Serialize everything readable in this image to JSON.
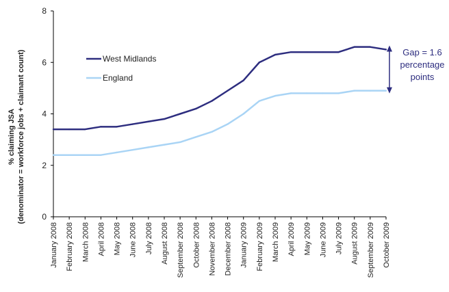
{
  "chart_data": {
    "type": "line",
    "ylabel_line1": "% claiming JSA",
    "ylabel_line2": "(denominator = workforce jobs + claimant count)",
    "ylim": [
      0,
      8
    ],
    "yticks": [
      "0",
      "2",
      "4",
      "6",
      "8"
    ],
    "grid": false,
    "categories": [
      "January 2008",
      "February 2008",
      "March 2008",
      "April 2008",
      "May 2008",
      "June 2008",
      "July 2008",
      "August 2008",
      "September 2008",
      "October 2008",
      "November 2008",
      "December 2008",
      "January 2009",
      "February 2009",
      "March 2009",
      "April 2009",
      "May 2009",
      "June 2009",
      "July 2009",
      "August 2009",
      "September 2009",
      "October 2009"
    ],
    "series": [
      {
        "name": "West Midlands",
        "color": "#2d2d7f",
        "values": [
          3.4,
          3.4,
          3.4,
          3.5,
          3.5,
          3.6,
          3.7,
          3.8,
          4.0,
          4.2,
          4.5,
          4.9,
          5.3,
          6.0,
          6.3,
          6.4,
          6.4,
          6.4,
          6.4,
          6.6,
          6.6,
          6.5
        ]
      },
      {
        "name": "England",
        "color": "#a9d4f5",
        "values": [
          2.4,
          2.4,
          2.4,
          2.4,
          2.5,
          2.6,
          2.7,
          2.8,
          2.9,
          3.1,
          3.3,
          3.6,
          4.0,
          4.5,
          4.7,
          4.8,
          4.8,
          4.8,
          4.8,
          4.9,
          4.9,
          4.9
        ]
      }
    ],
    "legend_placement": "top-left",
    "annotation": {
      "lines": [
        "Gap = 1.6",
        "percentage",
        "points"
      ],
      "color": "#2d2d7f"
    }
  }
}
